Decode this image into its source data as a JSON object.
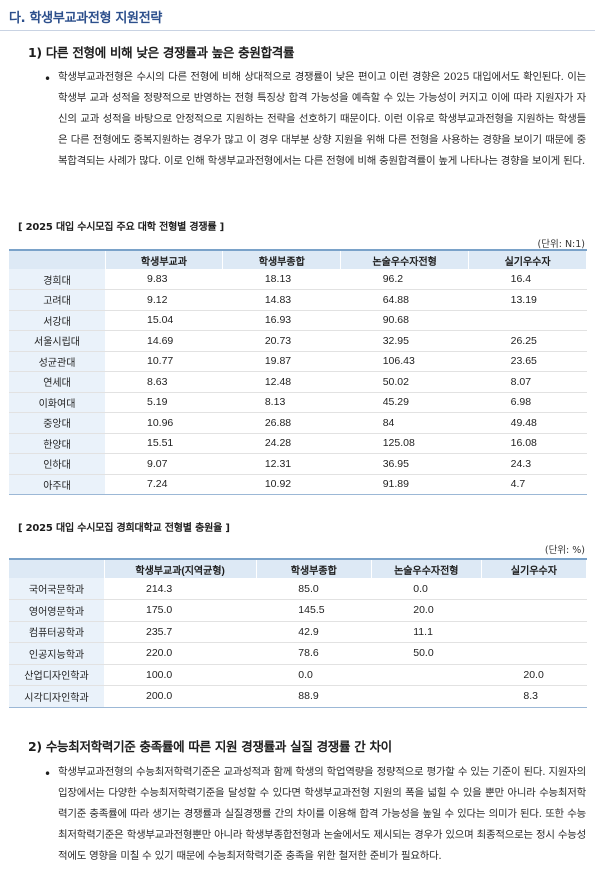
{
  "section_title": "다. 학생부교과전형 지원전략",
  "heading1": "1)  다른 전형에 비해 낮은 경쟁률과 높은 충원합격률",
  "bullet": "•",
  "para1": "학생부교과전형은 수시의 다른 전형에 비해 상대적으로 경쟁률이 낮은 편이고 이런 경향은 2025 대입에서도 확인된다. 이는 학생부 교과 성적을 정량적으로 반영하는 전형 특징상 합격 가능성을 예측할 수 있는 가능성이 커지고 이에 따라 지원자가 자신의 교과 성적을 바탕으로 안정적으로 지원하는 전략을 선호하기 때문이다. 이런 이유로 학생부교과전형을 지원하는 학생들은 다른 전형에도 중복지원하는 경우가 많고 이 경우 대부분 상향 지원을 위해 다른 전형을 사용하는 경향을 보이기 때문에 중복합격되는 사례가 많다. 이로 인해 학생부교과전형에서는 다른 전형에 비해 충원합격률이 높게 나타나는 경향을 보이게 된다.",
  "table1": {
    "caption": "[ 2025 대입 수시모집 주요 대학 전형별 경쟁률 ]",
    "unit": "(단위: N:1)",
    "headers": [
      "",
      "학생부교과",
      "학생부종합",
      "논술우수자전형",
      "실기우수자"
    ],
    "rows": [
      [
        "경희대",
        "9.83",
        "18.13",
        "96.2",
        "16.4"
      ],
      [
        "고려대",
        "9.12",
        "14.83",
        "64.88",
        "13.19"
      ],
      [
        "서강대",
        "15.04",
        "16.93",
        "90.68",
        ""
      ],
      [
        "서울시립대",
        "14.69",
        "20.73",
        "32.95",
        "26.25"
      ],
      [
        "성균관대",
        "10.77",
        "19.87",
        "106.43",
        "23.65"
      ],
      [
        "연세대",
        "8.63",
        "12.48",
        "50.02",
        "8.07"
      ],
      [
        "이화여대",
        "5.19",
        "8.13",
        "45.29",
        "6.98"
      ],
      [
        "중앙대",
        "10.96",
        "26.88",
        "84",
        "49.48"
      ],
      [
        "한양대",
        "15.51",
        "24.28",
        "125.08",
        "16.08"
      ],
      [
        "인하대",
        "9.07",
        "12.31",
        "36.95",
        "24.3"
      ],
      [
        "아주대",
        "7.24",
        "10.92",
        "91.89",
        "4.7"
      ]
    ]
  },
  "table2": {
    "caption": "[ 2025 대입 수시모집 경희대학교 전형별 충원율 ]",
    "unit": "(단위: %)",
    "headers": [
      "",
      "학생부교과(지역균형)",
      "학생부종합",
      "논술우수자전형",
      "실기우수자"
    ],
    "rows": [
      [
        "국어국문학과",
        "214.3",
        "85.0",
        "0.0",
        ""
      ],
      [
        "영어영문학과",
        "175.0",
        "145.5",
        "20.0",
        ""
      ],
      [
        "컴퓨터공학과",
        "235.7",
        "42.9",
        "11.1",
        ""
      ],
      [
        "인공지능학과",
        "220.0",
        "78.6",
        "50.0",
        ""
      ],
      [
        "산업디자인학과",
        "100.0",
        "0.0",
        "",
        "20.0"
      ],
      [
        "시각디자인학과",
        "200.0",
        "88.9",
        "",
        "8.3"
      ]
    ]
  },
  "heading2": "2) 수능최저학력기준 충족률에 따른 지원 경쟁률과 실질 경쟁률 간 차이",
  "para2": "학생부교과전형의 수능최저학력기준은 교과성적과 함께 학생의 학업역량을 정량적으로 평가할 수 있는 기준이 된다. 지원자의 입장에서는 다양한 수능최저학력기준을 달성할 수 있다면 학생부교과전형 지원의 폭을 넓힐 수 있을 뿐만 아니라 수능최저학력기준 충족률에 따라 생기는 경쟁률과 실질경쟁률 간의 차이를 이용해 합격 가능성을 높일 수 있다는 의미가 된다. 또한 수능최저학력기준은 학생부교과전형뿐만 아니라 학생부종합전형과 논술에서도 제시되는 경우가 있으며 최종적으로는 정시 수능성적에도 영향을 미칠 수 있기 때문에 수능최저학력기준 충족을 위한 철저한 준비가 필요하다."
}
